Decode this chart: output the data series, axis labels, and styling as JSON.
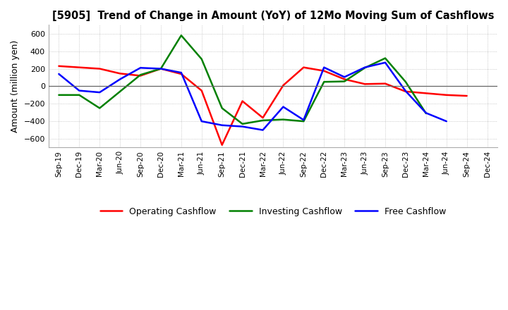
{
  "title": "[5905]  Trend of Change in Amount (YoY) of 12Mo Moving Sum of Cashflows",
  "ylabel": "Amount (million yen)",
  "x_labels": [
    "Sep-19",
    "Dec-19",
    "Mar-20",
    "Jun-20",
    "Sep-20",
    "Dec-20",
    "Mar-21",
    "Jun-21",
    "Sep-21",
    "Dec-21",
    "Mar-22",
    "Jun-22",
    "Sep-22",
    "Dec-22",
    "Mar-23",
    "Jun-23",
    "Sep-23",
    "Dec-23",
    "Mar-24",
    "Jun-24",
    "Sep-24",
    "Dec-24"
  ],
  "operating_cashflow": [
    230,
    215,
    200,
    145,
    120,
    200,
    140,
    -50,
    -670,
    -170,
    -360,
    10,
    215,
    175,
    80,
    25,
    30,
    -60,
    -80,
    -100,
    -110,
    null
  ],
  "investing_cashflow": [
    -100,
    -100,
    -250,
    -60,
    130,
    200,
    580,
    310,
    -250,
    -430,
    -390,
    -380,
    -400,
    50,
    55,
    210,
    320,
    50,
    -310,
    null,
    null,
    null
  ],
  "free_cashflow": [
    140,
    -50,
    -70,
    80,
    210,
    200,
    155,
    -400,
    -445,
    -460,
    -500,
    -235,
    -385,
    215,
    105,
    215,
    270,
    -55,
    -305,
    -400,
    null,
    null
  ],
  "operating_color": "#ff0000",
  "investing_color": "#008000",
  "free_color": "#0000ff",
  "ylim": [
    -700,
    700
  ],
  "yticks": [
    -600,
    -400,
    -200,
    0,
    200,
    400,
    600
  ],
  "bg_color": "#ffffff",
  "grid_color": "#bbbbbb",
  "legend_labels": [
    "Operating Cashflow",
    "Investing Cashflow",
    "Free Cashflow"
  ]
}
